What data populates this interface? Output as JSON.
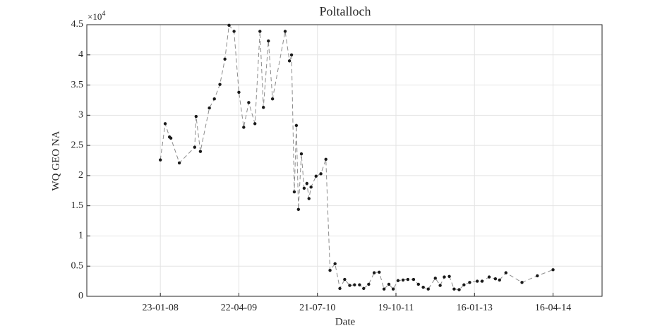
{
  "chart_data": {
    "type": "line",
    "title": "Poltalloch",
    "x_label": "Date",
    "y_label": "WQ GEO NA",
    "y_multiplier": "×10",
    "y_multiplier_exponent": "4",
    "grid": true,
    "xlim": [
      "2006-11-23",
      "2015-01-25"
    ],
    "xticks": [
      {
        "value": "2008-01-23",
        "label": "23-01-08"
      },
      {
        "value": "2009-04-22",
        "label": "22-04-09"
      },
      {
        "value": "2010-07-21",
        "label": "21-07-10"
      },
      {
        "value": "2011-10-19",
        "label": "19-10-11"
      },
      {
        "value": "2013-01-16",
        "label": "16-01-13"
      },
      {
        "value": "2014-04-16",
        "label": "16-04-14"
      }
    ],
    "ylim": [
      0,
      4.5
    ],
    "yticks": [
      0,
      0.5,
      1,
      1.5,
      2,
      2.5,
      3,
      3.5,
      4,
      4.5
    ],
    "x": [
      "2008-01-23",
      "2008-02-20",
      "2008-03-16",
      "2008-03-24",
      "2008-05-12",
      "2008-08-09",
      "2008-08-17",
      "2008-09-11",
      "2008-11-02",
      "2008-12-01",
      "2009-01-02",
      "2009-01-31",
      "2009-02-24",
      "2009-03-25",
      "2009-04-22",
      "2009-05-20",
      "2009-06-18",
      "2009-07-24",
      "2009-08-22",
      "2009-09-11",
      "2009-10-10",
      "2009-11-03",
      "2010-01-15",
      "2010-02-09",
      "2010-02-21",
      "2010-03-09",
      "2010-03-21",
      "2010-04-02",
      "2010-04-19",
      "2010-05-05",
      "2010-05-21",
      "2010-06-02",
      "2010-06-14",
      "2010-07-13",
      "2010-08-10",
      "2010-09-08",
      "2010-10-02",
      "2010-10-31",
      "2010-11-28",
      "2010-12-26",
      "2011-01-24",
      "2011-02-21",
      "2011-03-22",
      "2011-04-15",
      "2011-05-14",
      "2011-06-15",
      "2011-07-14",
      "2011-08-11",
      "2011-09-08",
      "2011-10-03",
      "2011-10-31",
      "2011-11-29",
      "2011-12-27",
      "2012-01-29",
      "2012-02-26",
      "2012-03-25",
      "2012-04-23",
      "2012-06-03",
      "2012-07-01",
      "2012-07-25",
      "2012-08-23",
      "2012-09-20",
      "2012-10-19",
      "2012-11-16",
      "2012-12-19",
      "2013-02-01",
      "2013-03-01",
      "2013-04-11",
      "2013-05-17",
      "2013-06-10",
      "2013-07-17",
      "2013-10-18",
      "2014-01-15",
      "2014-04-16"
    ],
    "series": [
      {
        "name": "WQ GEO NA",
        "color": "#8c8c8c",
        "marker_color": "#1a1a1a",
        "values": [
          2.26,
          2.86,
          2.64,
          2.62,
          2.21,
          2.47,
          2.98,
          2.4,
          3.12,
          3.27,
          3.51,
          3.93,
          4.49,
          4.39,
          3.38,
          2.8,
          3.21,
          2.86,
          4.39,
          3.13,
          4.23,
          3.27,
          4.39,
          3.9,
          4.0,
          1.73,
          2.83,
          1.44,
          2.36,
          1.79,
          1.87,
          1.62,
          1.81,
          1.99,
          2.03,
          2.27,
          0.43,
          0.54,
          0.13,
          0.28,
          0.18,
          0.19,
          0.19,
          0.13,
          0.2,
          0.39,
          0.4,
          0.12,
          0.2,
          0.12,
          0.26,
          0.27,
          0.28,
          0.28,
          0.2,
          0.15,
          0.12,
          0.3,
          0.18,
          0.32,
          0.33,
          0.12,
          0.11,
          0.19,
          0.23,
          0.25,
          0.25,
          0.32,
          0.29,
          0.27,
          0.39,
          0.23,
          0.34,
          0.44
        ]
      }
    ]
  }
}
